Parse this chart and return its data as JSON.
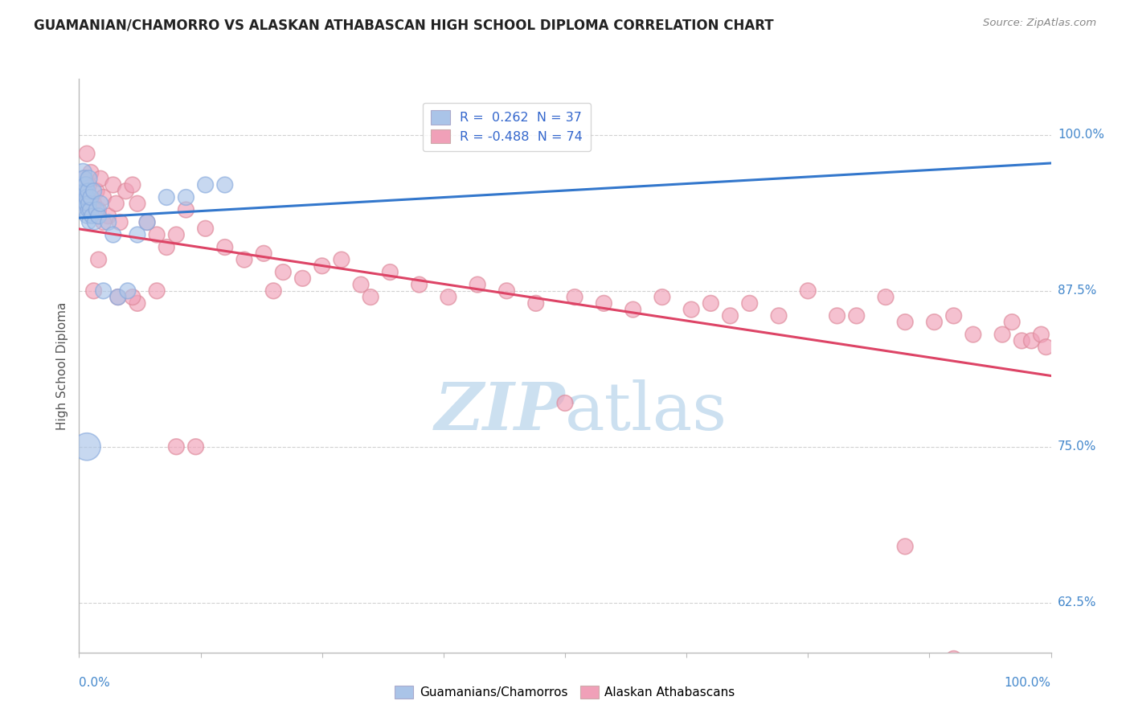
{
  "title": "GUAMANIAN/CHAMORRO VS ALASKAN ATHABASCAN HIGH SCHOOL DIPLOMA CORRELATION CHART",
  "source": "Source: ZipAtlas.com",
  "ylabel": "High School Diploma",
  "ytick_labels": [
    "62.5%",
    "75.0%",
    "87.5%",
    "100.0%"
  ],
  "ytick_values": [
    0.625,
    0.75,
    0.875,
    1.0
  ],
  "xmin": 0.0,
  "xmax": 1.0,
  "ymin": 0.585,
  "ymax": 1.045,
  "legend_blue_label": "R =  0.262  N = 37",
  "legend_pink_label": "R = -0.488  N = 74",
  "blue_color": "#aac4e8",
  "pink_color": "#f0a0b8",
  "blue_edge_color": "#88aadd",
  "pink_edge_color": "#dd8899",
  "blue_line_color": "#3377cc",
  "pink_line_color": "#dd4466",
  "legend_text_color": "#3366cc",
  "watermark_color": "#cce0f0",
  "background_color": "#ffffff",
  "grid_color": "#cccccc",
  "axis_color": "#bbbbbb",
  "right_tick_color": "#4488cc",
  "bottom_tick_color": "#4488cc",
  "blue_x": [
    0.002,
    0.003,
    0.004,
    0.004,
    0.005,
    0.005,
    0.006,
    0.006,
    0.007,
    0.007,
    0.008,
    0.008,
    0.009,
    0.009,
    0.01,
    0.01,
    0.01,
    0.011,
    0.012,
    0.013,
    0.015,
    0.016,
    0.018,
    0.02,
    0.022,
    0.025,
    0.03,
    0.035,
    0.04,
    0.06,
    0.07,
    0.09,
    0.11,
    0.13,
    0.15,
    0.05,
    0.008
  ],
  "blue_y": [
    0.96,
    0.955,
    0.97,
    0.945,
    0.965,
    0.95,
    0.94,
    0.955,
    0.945,
    0.96,
    0.935,
    0.95,
    0.94,
    0.955,
    0.93,
    0.945,
    0.965,
    0.94,
    0.95,
    0.935,
    0.955,
    0.93,
    0.94,
    0.935,
    0.945,
    0.875,
    0.93,
    0.92,
    0.87,
    0.92,
    0.93,
    0.95,
    0.95,
    0.96,
    0.96,
    0.875,
    0.75
  ],
  "blue_s": [
    200,
    150,
    250,
    180,
    220,
    160,
    200,
    170,
    190,
    210,
    180,
    200,
    170,
    190,
    160,
    200,
    220,
    170,
    200,
    180,
    200,
    180,
    200,
    200,
    200,
    200,
    200,
    200,
    200,
    200,
    200,
    200,
    200,
    200,
    200,
    200,
    600
  ],
  "pink_x": [
    0.005,
    0.007,
    0.008,
    0.01,
    0.012,
    0.015,
    0.018,
    0.02,
    0.022,
    0.025,
    0.03,
    0.035,
    0.038,
    0.042,
    0.048,
    0.055,
    0.06,
    0.07,
    0.08,
    0.09,
    0.1,
    0.11,
    0.13,
    0.15,
    0.17,
    0.19,
    0.21,
    0.23,
    0.25,
    0.27,
    0.29,
    0.32,
    0.35,
    0.38,
    0.41,
    0.44,
    0.47,
    0.51,
    0.54,
    0.57,
    0.6,
    0.63,
    0.65,
    0.67,
    0.69,
    0.72,
    0.75,
    0.78,
    0.8,
    0.83,
    0.85,
    0.88,
    0.9,
    0.92,
    0.95,
    0.96,
    0.97,
    0.98,
    0.99,
    0.995,
    0.015,
    0.04,
    0.02,
    0.06,
    0.08,
    0.025,
    0.055,
    0.1,
    0.12,
    0.2,
    0.3,
    0.5,
    0.85,
    0.9
  ],
  "pink_y": [
    0.965,
    0.95,
    0.985,
    0.96,
    0.97,
    0.945,
    0.955,
    0.94,
    0.965,
    0.95,
    0.935,
    0.96,
    0.945,
    0.93,
    0.955,
    0.96,
    0.945,
    0.93,
    0.92,
    0.91,
    0.92,
    0.94,
    0.925,
    0.91,
    0.9,
    0.905,
    0.89,
    0.885,
    0.895,
    0.9,
    0.88,
    0.89,
    0.88,
    0.87,
    0.88,
    0.875,
    0.865,
    0.87,
    0.865,
    0.86,
    0.87,
    0.86,
    0.865,
    0.855,
    0.865,
    0.855,
    0.875,
    0.855,
    0.855,
    0.87,
    0.85,
    0.85,
    0.855,
    0.84,
    0.84,
    0.85,
    0.835,
    0.835,
    0.84,
    0.83,
    0.875,
    0.87,
    0.9,
    0.865,
    0.875,
    0.93,
    0.87,
    0.75,
    0.75,
    0.875,
    0.87,
    0.785,
    0.67,
    0.58
  ],
  "pink_s": [
    200,
    200,
    200,
    200,
    200,
    200,
    200,
    200,
    200,
    200,
    200,
    200,
    200,
    200,
    200,
    200,
    200,
    200,
    200,
    200,
    200,
    200,
    200,
    200,
    200,
    200,
    200,
    200,
    200,
    200,
    200,
    200,
    200,
    200,
    200,
    200,
    200,
    200,
    200,
    200,
    200,
    200,
    200,
    200,
    200,
    200,
    200,
    200,
    200,
    200,
    200,
    200,
    200,
    200,
    200,
    200,
    200,
    200,
    200,
    200,
    200,
    200,
    200,
    200,
    200,
    200,
    200,
    200,
    200,
    200,
    200,
    200,
    200,
    200
  ]
}
